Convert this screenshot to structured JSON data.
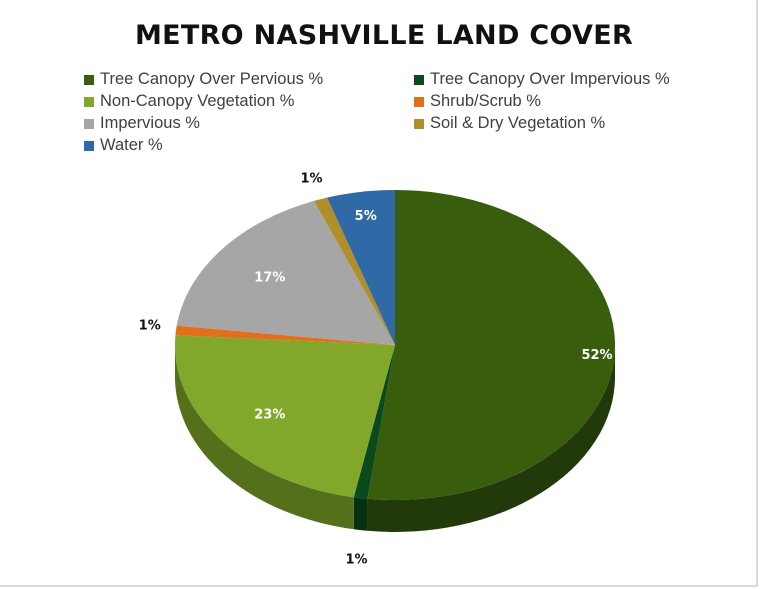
{
  "chart_data": {
    "type": "pie",
    "title": "METRO NASHVILLE LAND COVER",
    "legend_position": "top",
    "series": [
      {
        "name": "Tree Canopy Over Pervious %",
        "value": 52,
        "label": "52%",
        "color": "#385d0c",
        "side": "#22390a",
        "label_color": "#ffffff"
      },
      {
        "name": "Tree Canopy Over Impervious %",
        "value": 1,
        "label": "1%",
        "color": "#0b4a1c",
        "side": "#073010",
        "label_color": "#111111"
      },
      {
        "name": "Non-Canopy Vegetation %",
        "value": 23,
        "label": "23%",
        "color": "#81a82a",
        "side": "#54701a",
        "label_color": "#ffffff"
      },
      {
        "name": "Shrub/Scrub %",
        "value": 1,
        "label": "1%",
        "color": "#e0701c",
        "side": "#a04e10",
        "label_color": "#111111"
      },
      {
        "name": "Impervious %",
        "value": 17,
        "label": "17%",
        "color": "#a6a6a6",
        "side": "#777777",
        "label_color": "#ffffff"
      },
      {
        "name": "Soil & Dry Vegetation %",
        "value": 1,
        "label": "1%",
        "color": "#b08f2a",
        "side": "#7c641a",
        "label_color": "#111111"
      },
      {
        "name": "Water %",
        "value": 5,
        "label": "5%",
        "color": "#2f6aa6",
        "side": "#1f4a75",
        "label_color": "#ffffff"
      }
    ]
  }
}
